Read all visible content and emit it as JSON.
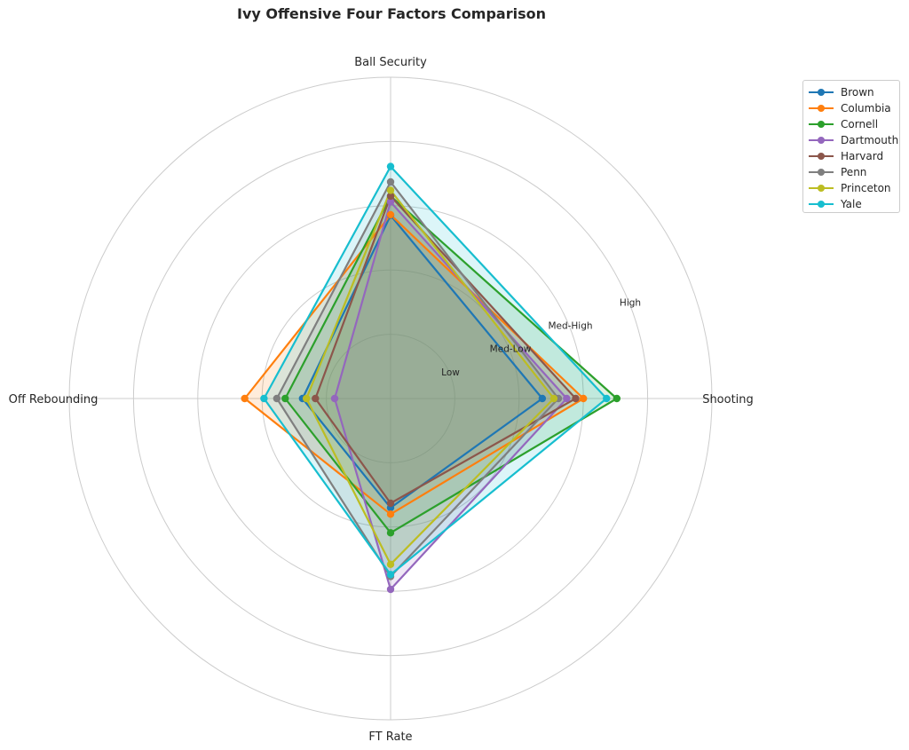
{
  "chart_data": {
    "type": "radar",
    "title": "Ivy Offensive Four Factors Comparison",
    "axes": [
      "Shooting",
      "Ball Security",
      "Off Rebounding",
      "FT Rate"
    ],
    "ring_labels": [
      "Low",
      "Med-Low",
      "Med-High",
      "High"
    ],
    "range": [
      0,
      5
    ],
    "grid": true,
    "legend_position": "top-right, outside",
    "series": [
      {
        "name": "Brown",
        "color": "#1f77b4",
        "values": [
          2.36,
          2.85,
          1.37,
          1.7
        ]
      },
      {
        "name": "Columbia",
        "color": "#ff7f0e",
        "values": [
          3.0,
          2.86,
          2.27,
          1.8
        ]
      },
      {
        "name": "Cornell",
        "color": "#2ca02c",
        "values": [
          3.52,
          3.15,
          1.64,
          2.09
        ]
      },
      {
        "name": "Dartmouth",
        "color": "#9467bd",
        "values": [
          2.74,
          3.06,
          0.87,
          2.97
        ]
      },
      {
        "name": "Harvard",
        "color": "#8c564b",
        "values": [
          2.88,
          3.15,
          1.17,
          1.63
        ]
      },
      {
        "name": "Penn",
        "color": "#7f7f7f",
        "values": [
          2.61,
          3.37,
          1.77,
          2.77
        ]
      },
      {
        "name": "Princeton",
        "color": "#bcbd22",
        "values": [
          2.54,
          3.24,
          1.31,
          2.58
        ]
      },
      {
        "name": "Yale",
        "color": "#17becf",
        "values": [
          3.36,
          3.61,
          1.97,
          2.74
        ]
      }
    ]
  }
}
